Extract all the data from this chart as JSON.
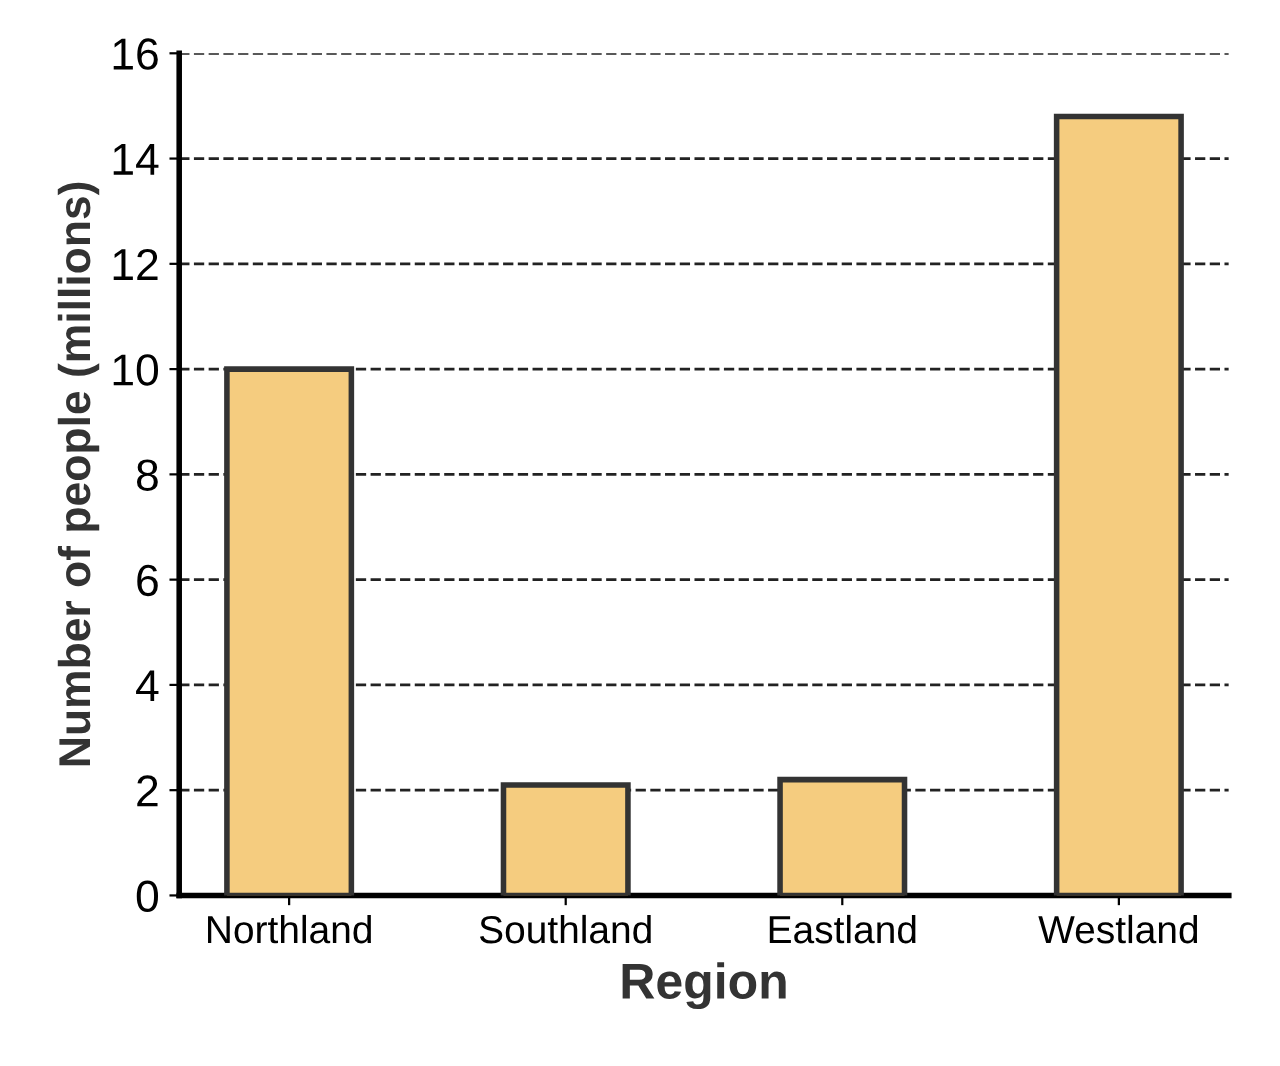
{
  "chart_data": {
    "type": "bar",
    "xlabel": "Region",
    "ylabel": "Number of people (millions)",
    "categories": [
      "Northland",
      "Southland",
      "Eastland",
      "Westland"
    ],
    "values": [
      10,
      2.1,
      2.2,
      14.8
    ],
    "color": "#f5cc7f",
    "ylim": [
      0,
      16
    ],
    "yticks": [
      0,
      2,
      4,
      6,
      8,
      10,
      12,
      14,
      16
    ],
    "grid": "y",
    "line_style": "dashed"
  }
}
